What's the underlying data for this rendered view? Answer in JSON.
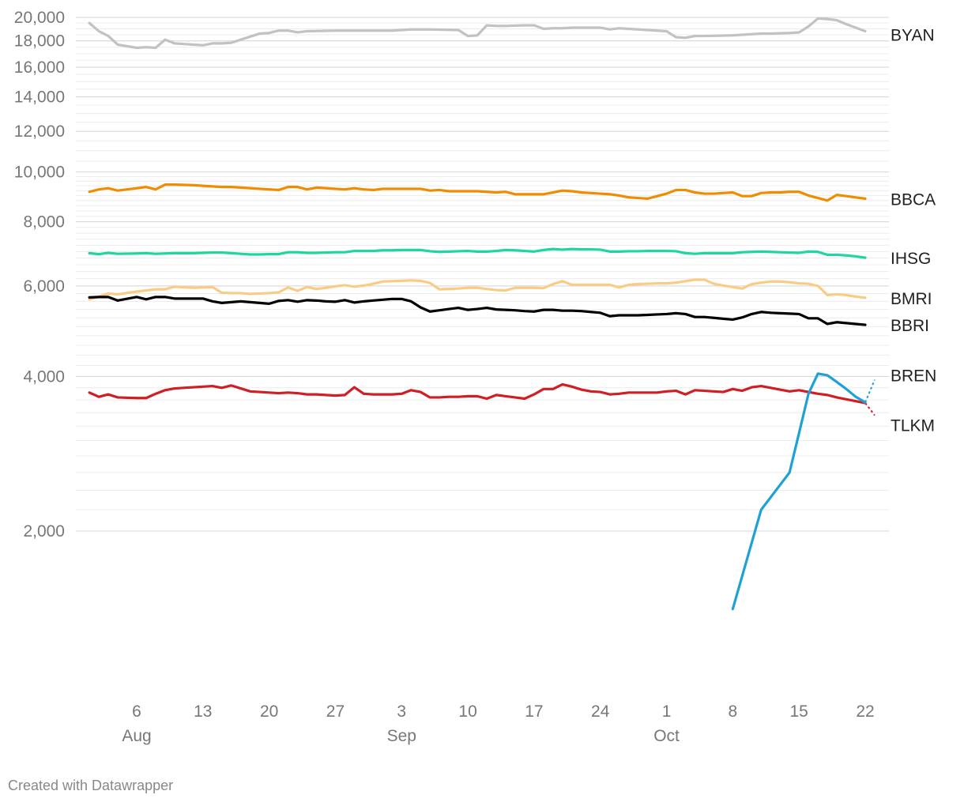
{
  "chart_data": {
    "type": "line",
    "title": "",
    "xlabel": "",
    "ylabel": "",
    "y_scale": "log",
    "ylim": [
      1400,
      20000
    ],
    "grid": true,
    "y_ticks": [
      {
        "value": 20000,
        "label": "20,000"
      },
      {
        "value": 18000,
        "label": "18,000"
      },
      {
        "value": 16000,
        "label": "16,000"
      },
      {
        "value": 14000,
        "label": "14,000"
      },
      {
        "value": 12000,
        "label": "12,000"
      },
      {
        "value": 10000,
        "label": "10,000"
      },
      {
        "value": 8000,
        "label": "8,000"
      },
      {
        "value": 6000,
        "label": "6,000"
      },
      {
        "value": 4000,
        "label": "4,000"
      },
      {
        "value": 2000,
        "label": "2,000"
      }
    ],
    "x_ticks": [
      {
        "day": 6,
        "label": "6",
        "month_label": "Aug"
      },
      {
        "day": 13,
        "label": "13",
        "month_label": ""
      },
      {
        "day": 20,
        "label": "20",
        "month_label": ""
      },
      {
        "day": 27,
        "label": "27",
        "month_label": ""
      },
      {
        "day": 34,
        "label": "3",
        "month_label": "Sep"
      },
      {
        "day": 41,
        "label": "10",
        "month_label": ""
      },
      {
        "day": 48,
        "label": "17",
        "month_label": ""
      },
      {
        "day": 55,
        "label": "24",
        "month_label": ""
      },
      {
        "day": 62,
        "label": "1",
        "month_label": "Oct"
      },
      {
        "day": 69,
        "label": "8",
        "month_label": ""
      },
      {
        "day": 76,
        "label": "15",
        "month_label": ""
      },
      {
        "day": 83,
        "label": "22",
        "month_label": ""
      }
    ],
    "x_domain": [
      1,
      84
    ],
    "series": [
      {
        "name": "BYAN",
        "color": "#c2c2c2",
        "dashed_last": false,
        "x": [
          1,
          2,
          3,
          4,
          6,
          7,
          8,
          9,
          10,
          11,
          12,
          13,
          14,
          15,
          16,
          17,
          18,
          19,
          20,
          21,
          22,
          23,
          24,
          27,
          28,
          29,
          30,
          31,
          32,
          33,
          34,
          35,
          36,
          37,
          40,
          41,
          42,
          43,
          44,
          45,
          47,
          48,
          49,
          50,
          51,
          52,
          55,
          56,
          57,
          58,
          61,
          62,
          63,
          64,
          65,
          66,
          69,
          70,
          72,
          73,
          75,
          76,
          77,
          78,
          79,
          80,
          81,
          83
        ],
        "y": [
          19500,
          18800,
          18400,
          17700,
          17450,
          17500,
          17450,
          18100,
          17800,
          17750,
          17700,
          17650,
          17800,
          17800,
          17850,
          18100,
          18350,
          18600,
          18650,
          18850,
          18850,
          18700,
          18800,
          18850,
          18850,
          18850,
          18850,
          18850,
          18850,
          18850,
          18900,
          18950,
          18950,
          18950,
          18900,
          18400,
          18450,
          19300,
          19250,
          19250,
          19300,
          19300,
          19000,
          19050,
          19050,
          19100,
          19100,
          18950,
          19050,
          19000,
          18850,
          18800,
          18300,
          18250,
          18400,
          18400,
          18450,
          18500,
          18600,
          18600,
          18650,
          18700,
          19200,
          19900,
          19850,
          19750,
          19400,
          18800
        ]
      },
      {
        "name": "BBCA",
        "color": "#f08c00",
        "dashed_last": false,
        "x": [
          1,
          2,
          3,
          4,
          6,
          7,
          8,
          9,
          10,
          12,
          13,
          14,
          15,
          16,
          17,
          18,
          19,
          20,
          21,
          22,
          23,
          24,
          25,
          26,
          27,
          28,
          29,
          30,
          31,
          32,
          33,
          34,
          35,
          36,
          37,
          38,
          39,
          40,
          41,
          42,
          43,
          44,
          45,
          46,
          47,
          48,
          49,
          50,
          51,
          52,
          53,
          54,
          55,
          56,
          57,
          58,
          59,
          60,
          61,
          62,
          63,
          64,
          65,
          66,
          67,
          68,
          69,
          70,
          71,
          72,
          73,
          74,
          75,
          76,
          77,
          78,
          79,
          80,
          81,
          82,
          83
        ],
        "y": [
          9150,
          9250,
          9300,
          9200,
          9300,
          9350,
          9250,
          9450,
          9450,
          9425,
          9400,
          9375,
          9350,
          9350,
          9325,
          9300,
          9275,
          9250,
          9225,
          9350,
          9350,
          9250,
          9325,
          9300,
          9275,
          9250,
          9300,
          9250,
          9225,
          9275,
          9275,
          9275,
          9275,
          9275,
          9200,
          9225,
          9175,
          9175,
          9175,
          9175,
          9150,
          9125,
          9150,
          9050,
          9050,
          9050,
          9050,
          9125,
          9200,
          9175,
          9125,
          9100,
          9075,
          9050,
          9000,
          8925,
          8900,
          8875,
          8975,
          9075,
          9225,
          9225,
          9125,
          9075,
          9075,
          9100,
          9125,
          8975,
          8975,
          9100,
          9125,
          9125,
          9150,
          9150,
          9000,
          8900,
          8800,
          9025,
          8975,
          8925,
          8875
        ]
      },
      {
        "name": "IHSG",
        "color": "#1fd6a0",
        "dashed_last": false,
        "x": [
          1,
          2,
          3,
          4,
          6,
          7,
          8,
          9,
          10,
          12,
          13,
          14,
          15,
          16,
          17,
          18,
          19,
          20,
          21,
          22,
          23,
          24,
          25,
          26,
          27,
          28,
          29,
          30,
          31,
          32,
          33,
          34,
          35,
          36,
          37,
          38,
          39,
          40,
          41,
          42,
          43,
          44,
          45,
          46,
          47,
          48,
          49,
          50,
          51,
          52,
          53,
          54,
          55,
          56,
          57,
          58,
          59,
          60,
          61,
          62,
          63,
          64,
          65,
          66,
          67,
          68,
          69,
          70,
          71,
          72,
          73,
          74,
          75,
          76,
          77,
          78,
          79,
          80,
          81,
          82,
          83
        ],
        "y": [
          6950,
          6920,
          6960,
          6930,
          6940,
          6950,
          6930,
          6940,
          6950,
          6950,
          6960,
          6970,
          6970,
          6950,
          6930,
          6910,
          6910,
          6920,
          6920,
          6980,
          6980,
          6960,
          6960,
          6970,
          6980,
          6980,
          7020,
          7020,
          7020,
          7040,
          7040,
          7050,
          7050,
          7050,
          7010,
          6990,
          7000,
          7010,
          7020,
          7000,
          7000,
          7020,
          7050,
          7040,
          7020,
          7000,
          7050,
          7080,
          7060,
          7080,
          7070,
          7070,
          7060,
          7000,
          7000,
          7010,
          7010,
          7020,
          7020,
          7020,
          7010,
          6950,
          6930,
          6950,
          6950,
          6950,
          6950,
          6980,
          6990,
          7000,
          6990,
          6980,
          6970,
          6960,
          7000,
          6990,
          6900,
          6900,
          6880,
          6850,
          6810
        ]
      },
      {
        "name": "BMRI",
        "color": "#f9cc85",
        "dashed_last": false,
        "x": [
          1,
          2,
          3,
          4,
          6,
          7,
          8,
          9,
          10,
          12,
          13,
          14,
          15,
          16,
          17,
          18,
          19,
          20,
          21,
          22,
          23,
          24,
          25,
          26,
          27,
          28,
          29,
          30,
          31,
          32,
          33,
          34,
          35,
          36,
          37,
          38,
          39,
          40,
          41,
          42,
          43,
          44,
          45,
          46,
          47,
          48,
          49,
          50,
          51,
          52,
          53,
          54,
          55,
          56,
          57,
          58,
          59,
          60,
          61,
          62,
          63,
          64,
          65,
          66,
          67,
          68,
          69,
          70,
          71,
          72,
          73,
          74,
          75,
          76,
          77,
          78,
          79,
          80,
          81,
          82,
          83
        ],
        "y": [
          5650,
          5720,
          5800,
          5780,
          5850,
          5880,
          5910,
          5910,
          5980,
          5950,
          5960,
          5970,
          5820,
          5810,
          5810,
          5790,
          5800,
          5810,
          5830,
          5960,
          5870,
          5970,
          5920,
          5950,
          5990,
          6020,
          5980,
          6010,
          6060,
          6120,
          6130,
          6140,
          6150,
          6140,
          6080,
          5910,
          5920,
          5930,
          5950,
          5950,
          5920,
          5890,
          5880,
          5950,
          5950,
          5950,
          5940,
          6050,
          6130,
          6030,
          6030,
          6030,
          6030,
          6030,
          5960,
          6030,
          6050,
          6060,
          6070,
          6070,
          6090,
          6130,
          6170,
          6170,
          6060,
          6010,
          5970,
          5930,
          6050,
          6090,
          6120,
          6120,
          6100,
          6070,
          6060,
          6000,
          5760,
          5780,
          5760,
          5720,
          5690
        ]
      },
      {
        "name": "BBRI",
        "color": "#000000",
        "dashed_last": false,
        "x": [
          1,
          2,
          3,
          4,
          6,
          7,
          8,
          9,
          10,
          12,
          13,
          14,
          15,
          16,
          17,
          18,
          19,
          20,
          21,
          22,
          23,
          24,
          25,
          26,
          27,
          28,
          29,
          30,
          31,
          32,
          33,
          34,
          35,
          36,
          37,
          38,
          39,
          40,
          41,
          42,
          43,
          44,
          45,
          46,
          47,
          48,
          49,
          50,
          51,
          52,
          53,
          54,
          55,
          56,
          57,
          58,
          59,
          60,
          61,
          62,
          63,
          64,
          65,
          66,
          67,
          68,
          69,
          70,
          71,
          72,
          73,
          74,
          75,
          76,
          77,
          78,
          79,
          80,
          81,
          82,
          83
        ],
        "y": [
          5700,
          5710,
          5710,
          5620,
          5710,
          5650,
          5710,
          5710,
          5670,
          5670,
          5670,
          5600,
          5560,
          5580,
          5600,
          5580,
          5560,
          5540,
          5610,
          5630,
          5590,
          5630,
          5620,
          5600,
          5590,
          5630,
          5570,
          5600,
          5620,
          5640,
          5660,
          5660,
          5600,
          5450,
          5350,
          5380,
          5410,
          5440,
          5390,
          5410,
          5440,
          5400,
          5390,
          5380,
          5360,
          5350,
          5390,
          5390,
          5370,
          5370,
          5360,
          5340,
          5320,
          5240,
          5260,
          5260,
          5260,
          5270,
          5280,
          5290,
          5310,
          5290,
          5220,
          5220,
          5200,
          5180,
          5160,
          5210,
          5290,
          5340,
          5320,
          5310,
          5300,
          5290,
          5190,
          5190,
          5060,
          5100,
          5080,
          5060,
          5040
        ]
      },
      {
        "name": "BREN",
        "color": "#1ea1d4",
        "dashed_last": true,
        "x": [
          69,
          72,
          75,
          76,
          77,
          78,
          79,
          80,
          81,
          82,
          83,
          84
        ],
        "y": [
          1410,
          2200,
          2600,
          3100,
          3700,
          4050,
          4020,
          3900,
          3780,
          3650,
          3560,
          3940
        ]
      },
      {
        "name": "TLKM",
        "color": "#cf1f25",
        "dashed_last": true,
        "x": [
          1,
          2,
          3,
          4,
          6,
          7,
          8,
          9,
          10,
          12,
          13,
          14,
          15,
          16,
          17,
          18,
          19,
          20,
          21,
          22,
          23,
          24,
          25,
          26,
          27,
          28,
          29,
          30,
          31,
          32,
          33,
          34,
          35,
          36,
          37,
          38,
          39,
          40,
          41,
          42,
          43,
          44,
          45,
          46,
          47,
          48,
          49,
          50,
          51,
          52,
          53,
          54,
          55,
          56,
          57,
          58,
          59,
          60,
          61,
          62,
          63,
          64,
          65,
          66,
          67,
          68,
          69,
          70,
          71,
          72,
          73,
          74,
          75,
          76,
          77,
          78,
          79,
          80,
          81,
          82,
          83,
          84
        ],
        "y": [
          3720,
          3650,
          3690,
          3640,
          3630,
          3630,
          3700,
          3760,
          3790,
          3810,
          3820,
          3830,
          3800,
          3840,
          3790,
          3740,
          3730,
          3720,
          3710,
          3720,
          3710,
          3690,
          3690,
          3680,
          3670,
          3680,
          3810,
          3700,
          3690,
          3690,
          3690,
          3700,
          3760,
          3730,
          3640,
          3640,
          3650,
          3650,
          3660,
          3660,
          3620,
          3680,
          3660,
          3640,
          3620,
          3690,
          3780,
          3780,
          3860,
          3820,
          3770,
          3740,
          3730,
          3690,
          3700,
          3720,
          3720,
          3720,
          3720,
          3740,
          3750,
          3690,
          3760,
          3750,
          3740,
          3730,
          3780,
          3750,
          3810,
          3830,
          3800,
          3770,
          3740,
          3760,
          3730,
          3700,
          3680,
          3640,
          3610,
          3580,
          3550,
          3360
        ]
      }
    ]
  },
  "credit": "Created with Datawrapper"
}
